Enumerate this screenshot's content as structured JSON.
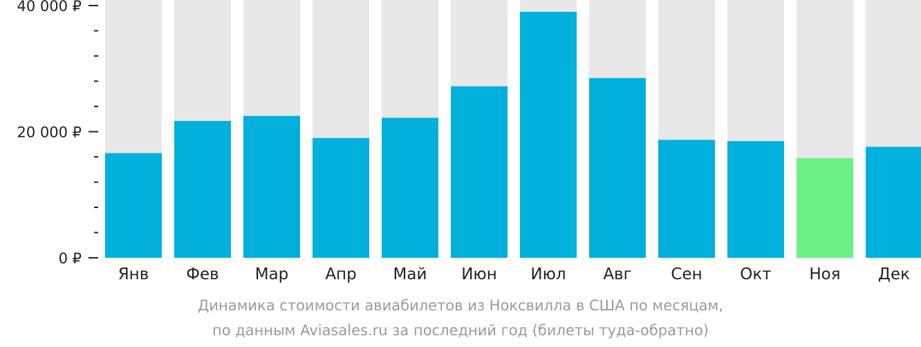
{
  "colors": {
    "bar": "#02b0dc",
    "bar_lowest": "#6af084",
    "track": "#e8e8e8",
    "axis": "#222222",
    "caption": "#9a9a9a"
  },
  "chart_data": {
    "type": "bar",
    "categories": [
      "Янв",
      "Фев",
      "Мар",
      "Апр",
      "Май",
      "Июн",
      "Июл",
      "Авг",
      "Сен",
      "Окт",
      "Ноя",
      "Дек"
    ],
    "values": [
      16600,
      21700,
      22500,
      19000,
      22200,
      27200,
      39000,
      28500,
      18700,
      18500,
      15800,
      17600
    ],
    "highlight_index": 10,
    "ylim": [
      0,
      40000
    ],
    "y_ticks": [
      {
        "value": 0,
        "label": "0 ₽"
      },
      {
        "value": 20000,
        "label": "20 000 ₽"
      },
      {
        "value": 40000,
        "label": "40 000 ₽"
      }
    ],
    "y_minor_step": 4000,
    "grid": false,
    "title": "",
    "xlabel": "",
    "ylabel": ""
  },
  "caption": {
    "line1": "Динамика стоимости авиабилетов из Ноксвилла в США по месяцам,",
    "line2": "по данным Aviasales.ru за последний год (билеты туда-обратно)"
  }
}
